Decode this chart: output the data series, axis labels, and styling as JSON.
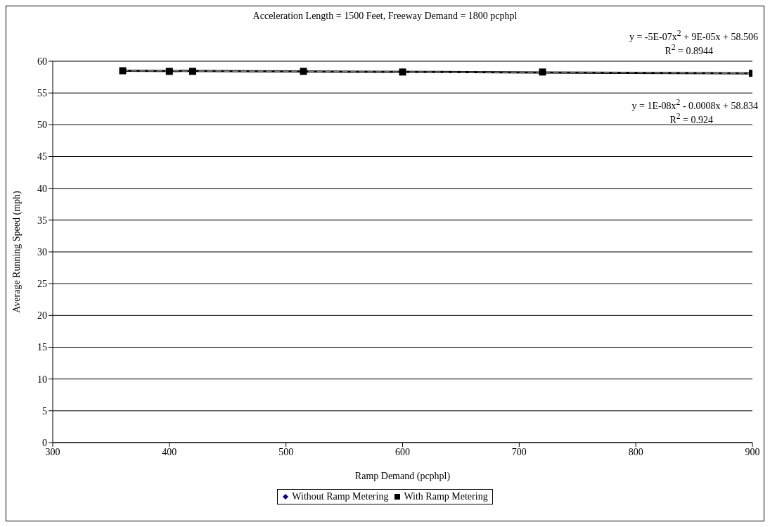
{
  "chart_data": {
    "type": "scatter",
    "title": "Acceleration Length = 1500 Feet, Freeway Demand = 1800 pcphpl",
    "xlabel": "Ramp Demand (pcphpl)",
    "ylabel": "Average Running Speed (mph)",
    "x": [
      360,
      400,
      420,
      515,
      600,
      720,
      900
    ],
    "series": [
      {
        "name": "Without Ramp Metering",
        "color": "#000080",
        "marker": "diamond",
        "values": [
          null,
          null,
          null,
          null,
          null,
          null,
          null
        ]
      },
      {
        "name": "With Ramp Metering",
        "color": "#000000",
        "marker": "square",
        "values": [
          58.5,
          58.4,
          58.4,
          58.4,
          58.3,
          58.3,
          58.1
        ]
      },
      {
        "type": "line",
        "color": "#000000",
        "marker": "none",
        "line_style": "solid",
        "x": [
          360,
          630,
          900
        ],
        "values": [
          58.5,
          58.3,
          58.1
        ]
      },
      {
        "type": "line",
        "color": "#808080",
        "marker": "none",
        "line_style": "dashed",
        "x": [
          360,
          630,
          900
        ],
        "values": [
          58.5,
          58.3,
          58.1
        ]
      }
    ],
    "xlim": [
      300,
      900
    ],
    "xticks": [
      300,
      400,
      500,
      600,
      700,
      800,
      900
    ],
    "ylim": [
      0,
      60
    ],
    "yticks": [
      0,
      5,
      10,
      15,
      20,
      25,
      30,
      35,
      40,
      45,
      50,
      55,
      60
    ],
    "grid": "y",
    "legend": "bottom",
    "annotations": [
      "y = -5E-07x$^{2}$ + 9E-05x + 58.506",
      "R$^{2}$ = 0.8944",
      "y = 1E-08x$^{2}$ - 0.0008x + 58.834",
      "R$^{2}$ = 0.924"
    ]
  }
}
